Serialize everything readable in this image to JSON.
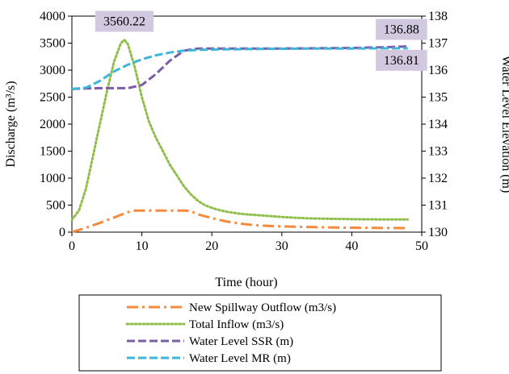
{
  "chart_data": {
    "type": "line",
    "xlabel": "Time (hour)",
    "ylabel_left": "Discharge (m³/s)",
    "ylabel_right": "Water Level Elevation (m)",
    "xlim": [
      0,
      50
    ],
    "ylim_left": [
      0,
      4000
    ],
    "ylim_right": [
      130,
      138
    ],
    "x_ticks": [
      0,
      10,
      20,
      30,
      40,
      50
    ],
    "y_ticks_left": [
      0,
      500,
      1000,
      1500,
      2000,
      2500,
      3000,
      3500,
      4000
    ],
    "y_ticks_right": [
      130,
      131,
      132,
      133,
      134,
      135,
      136,
      137,
      138
    ],
    "grid": false,
    "legend_position": "bottom",
    "series": [
      {
        "name": "New Spillway Outflow (m3/s)",
        "axis": "left",
        "style": "dashdot",
        "color": "#F58A3C",
        "x": [
          0,
          2,
          4,
          6,
          8,
          9,
          10,
          12,
          14,
          16,
          17,
          18,
          20,
          22,
          24,
          26,
          28,
          30,
          32,
          34,
          36,
          38,
          40,
          42,
          44,
          46,
          48
        ],
        "y": [
          0,
          80,
          170,
          270,
          370,
          400,
          400,
          400,
          400,
          400,
          390,
          330,
          260,
          200,
          160,
          130,
          115,
          105,
          100,
          95,
          90,
          85,
          82,
          80,
          78,
          76,
          75
        ]
      },
      {
        "name": "Total Inflow (m3/s)",
        "axis": "left",
        "style": "dotted",
        "color": "#8FBF4A",
        "x": [
          0,
          1,
          2,
          3,
          4,
          5,
          6,
          7,
          7.5,
          8,
          9,
          10,
          11,
          12,
          13,
          14,
          15,
          16,
          17,
          18,
          19,
          20,
          21,
          22,
          23,
          24,
          26,
          28,
          30,
          32,
          34,
          36,
          38,
          40,
          42,
          44,
          46,
          48
        ],
        "y": [
          230,
          400,
          800,
          1400,
          2000,
          2600,
          3150,
          3500,
          3560.22,
          3480,
          3050,
          2500,
          2050,
          1750,
          1500,
          1250,
          1050,
          850,
          700,
          580,
          500,
          450,
          410,
          380,
          360,
          340,
          320,
          300,
          280,
          265,
          255,
          250,
          245,
          240,
          238,
          236,
          235,
          235
        ]
      },
      {
        "name": "Water Level SSR (m)",
        "axis": "right",
        "style": "dashed",
        "color": "#7B5CA8",
        "x": [
          0,
          2,
          4,
          6,
          8,
          10,
          12,
          14,
          16,
          18,
          20,
          22,
          25,
          30,
          35,
          40,
          45,
          48
        ],
        "y": [
          135.3,
          135.32,
          135.33,
          135.33,
          135.33,
          135.45,
          135.85,
          136.35,
          136.72,
          136.8,
          136.8,
          136.8,
          136.8,
          136.8,
          136.81,
          136.82,
          136.85,
          136.88
        ]
      },
      {
        "name": "Water Level MR (m)",
        "axis": "right",
        "style": "dashed",
        "color": "#3EB6D9",
        "x": [
          0,
          2,
          4,
          6,
          8,
          10,
          12,
          14,
          16,
          18,
          20,
          22,
          25,
          30,
          35,
          40,
          45,
          48
        ],
        "y": [
          135.3,
          135.35,
          135.6,
          135.95,
          136.2,
          136.4,
          136.55,
          136.65,
          136.72,
          136.75,
          136.76,
          136.77,
          136.78,
          136.79,
          136.8,
          136.8,
          136.81,
          136.81
        ]
      }
    ],
    "annotations": [
      {
        "text": "3560.22",
        "series": "Total Inflow (m3/s)",
        "x": 7.5,
        "y": 3560.22
      },
      {
        "text": "136.88",
        "series": "Water Level SSR (m)",
        "x": 48,
        "y": 136.88
      },
      {
        "text": "136.81",
        "series": "Water Level MR (m)",
        "x": 48,
        "y": 136.81
      }
    ]
  }
}
